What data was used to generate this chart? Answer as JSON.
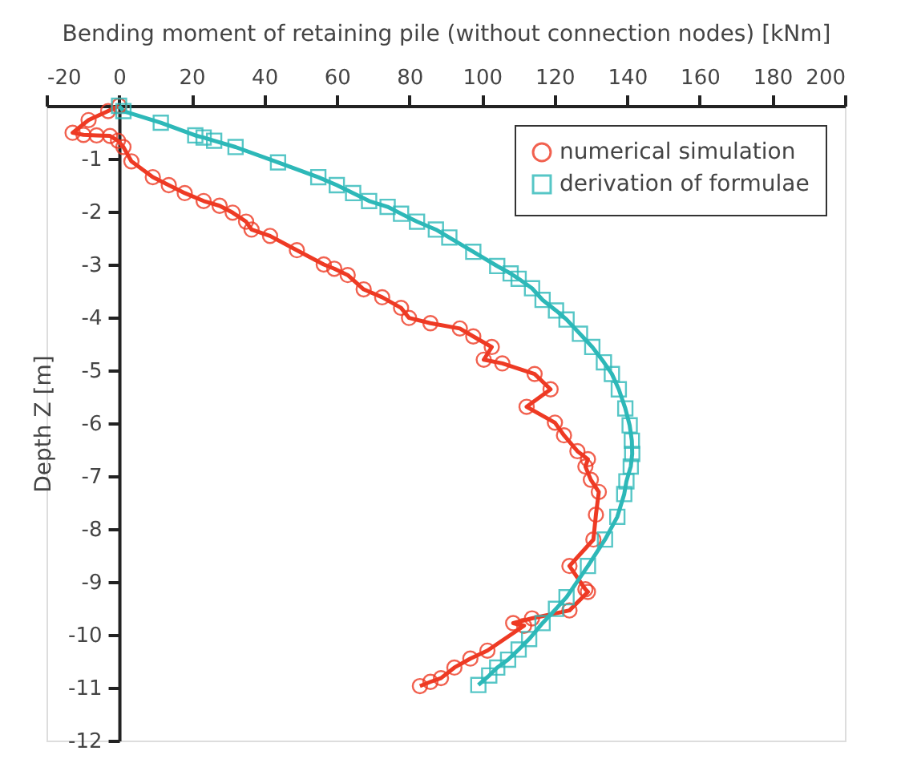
{
  "chart_data": {
    "type": "line",
    "xlabel": "Bending moment of retaining pile (without connection nodes) [kNm]",
    "ylabel": "Depth Z [m]",
    "xlim": [
      -20,
      200
    ],
    "xticks": [
      -20,
      0,
      20,
      40,
      60,
      80,
      100,
      120,
      140,
      160,
      180,
      200
    ],
    "ylim": [
      -12,
      0
    ],
    "yticks": [
      {
        "value": 0,
        "label": null
      },
      -1,
      -2,
      -3,
      -4,
      -5,
      -6,
      -7,
      -8,
      -9,
      -10,
      -11,
      -12
    ],
    "grid": false,
    "legend": "top right",
    "line_style": "solid",
    "series": [
      {
        "name": "numerical simulation",
        "color": "#ee3a24",
        "marker": "circle",
        "x": [
          0,
          -3,
          -8.4,
          -12.8,
          -9.8,
          -6.2,
          -2.5,
          -0.3,
          1.2,
          3.4,
          9.3,
          13.7,
          18.1,
          23.3,
          27.7,
          31.3,
          35,
          36.5,
          41.6,
          49,
          56.4,
          59.3,
          63,
          67.4,
          72.5,
          77.7,
          79.9,
          85.8,
          93.9,
          97.6,
          102.7,
          100.5,
          105.6,
          114.5,
          118.9,
          112.3,
          120.1,
          122.6,
          126.3,
          129.2,
          128.5,
          130,
          132.2,
          131.4,
          130.7,
          124.1,
          128.5,
          129.2,
          124.1,
          113.8,
          108.6,
          111.6,
          101.5,
          96.8,
          92.4,
          88.7,
          85.8,
          82.9
        ],
        "values": [
          0,
          -0.1,
          -0.27,
          -0.51,
          -0.55,
          -0.56,
          -0.57,
          -0.66,
          -0.78,
          -1.05,
          -1.35,
          -1.5,
          -1.65,
          -1.8,
          -1.89,
          -2.02,
          -2.19,
          -2.34,
          -2.46,
          -2.73,
          -3.0,
          -3.08,
          -3.2,
          -3.47,
          -3.62,
          -3.82,
          -4.01,
          -4.11,
          -4.21,
          -4.36,
          -4.56,
          -4.8,
          -4.87,
          -5.07,
          -5.36,
          -5.69,
          -5.99,
          -6.23,
          -6.53,
          -6.68,
          -6.82,
          -7.07,
          -7.3,
          -7.73,
          -8.2,
          -8.7,
          -9.14,
          -9.19,
          -9.54,
          -9.69,
          -9.78,
          -9.83,
          -10.3,
          -10.45,
          -10.62,
          -10.82,
          -10.89,
          -10.97
        ]
      },
      {
        "name": "derivation of formulae",
        "color": "#2db8b8",
        "marker": "square",
        "x": [
          0,
          1.2,
          11.5,
          21,
          23.3,
          26.2,
          32.1,
          43.8,
          54.9,
          60,
          64.5,
          68.9,
          74,
          77.7,
          82.1,
          87.3,
          91,
          97.6,
          104.2,
          107.9,
          110.1,
          113.8,
          116.7,
          120.4,
          123.3,
          127,
          130.4,
          133.6,
          135.8,
          137.7,
          139.5,
          140.7,
          141.3,
          141.4,
          141,
          139.8,
          139.2,
          137.3,
          133.9,
          129.2,
          123.3,
          120.4,
          116.7,
          113,
          110.1,
          107.2,
          104.2,
          102,
          99
        ],
        "values": [
          0,
          -0.1,
          -0.32,
          -0.56,
          -0.6,
          -0.66,
          -0.78,
          -1.07,
          -1.35,
          -1.5,
          -1.65,
          -1.8,
          -1.91,
          -2.04,
          -2.19,
          -2.34,
          -2.49,
          -2.76,
          -3.03,
          -3.17,
          -3.27,
          -3.45,
          -3.67,
          -3.87,
          -4.04,
          -4.31,
          -4.56,
          -4.85,
          -5.07,
          -5.36,
          -5.72,
          -6.04,
          -6.33,
          -6.58,
          -6.82,
          -7.1,
          -7.34,
          -7.77,
          -8.2,
          -8.7,
          -9.29,
          -9.51,
          -9.78,
          -10.08,
          -10.28,
          -10.47,
          -10.62,
          -10.77,
          -10.95
        ]
      }
    ]
  }
}
